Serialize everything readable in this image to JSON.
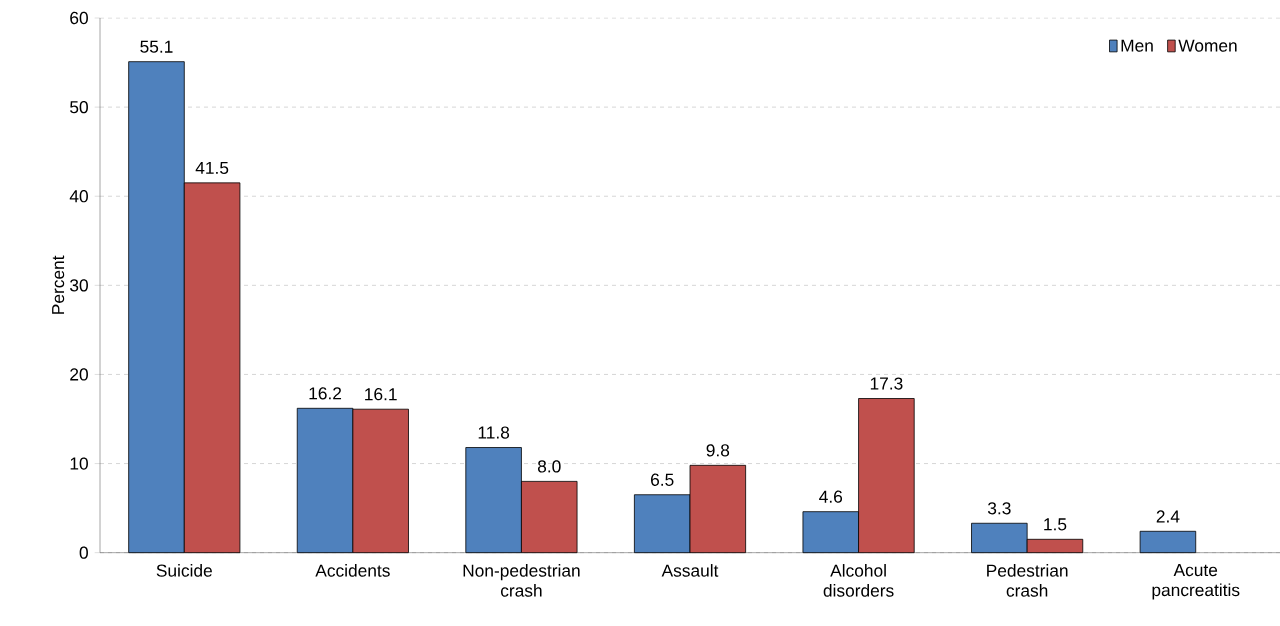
{
  "chart_data": {
    "type": "bar",
    "ylabel": "Percent",
    "categories": [
      "Suicide",
      "Accidents",
      "Non-pedestrian crash",
      "Assault",
      "Alcohol disorders",
      "Pedestrian crash",
      "Acute pancreatitis"
    ],
    "series": [
      {
        "name": "Men",
        "color": "#4f81bd",
        "values": [
          55.1,
          16.2,
          11.8,
          6.5,
          4.6,
          3.3,
          2.4
        ],
        "value_labels": [
          "55.1",
          "16.2",
          "11.8",
          "6.5",
          "4.6",
          "3.3",
          "2.4"
        ]
      },
      {
        "name": "Women",
        "color": "#c0504d",
        "values": [
          41.5,
          16.1,
          8.0,
          9.8,
          17.3,
          1.5,
          null
        ],
        "value_labels": [
          "41.5",
          "16.1",
          "8.0",
          "9.8",
          "17.3",
          "1.5",
          null
        ]
      }
    ],
    "ylim": [
      0,
      60
    ],
    "yticks": [
      0,
      10,
      20,
      30,
      40,
      50,
      60
    ],
    "grid": "y",
    "legend": "top right"
  }
}
